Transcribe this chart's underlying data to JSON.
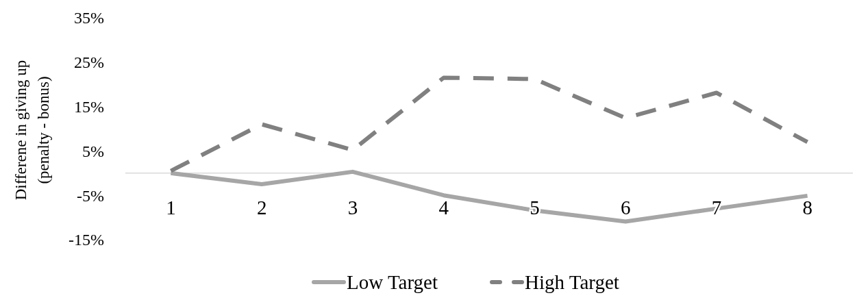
{
  "chart_data": {
    "type": "line",
    "ylabel": "Differene in giving up\n(penalty - bonus)",
    "categories": [
      "1",
      "2",
      "3",
      "4",
      "5",
      "6",
      "7",
      "8"
    ],
    "series": [
      {
        "name": "Low Target",
        "color": "#a6a6a6",
        "line_style": "solid",
        "values": [
          0,
          -2.5,
          0.3,
          -5,
          -8.4,
          -10.9,
          -8,
          -5.1
        ]
      },
      {
        "name": "High Target",
        "color": "#808080",
        "line_style": "dashed",
        "values": [
          0.5,
          11,
          5.2,
          21.5,
          21.2,
          12.4,
          18.1,
          7
        ]
      }
    ],
    "ylim": [
      -15,
      35
    ],
    "yticks": [
      {
        "value": -15,
        "label": "-15%"
      },
      {
        "value": -5,
        "label": "-5%"
      },
      {
        "value": 5,
        "label": "5%"
      },
      {
        "value": 15,
        "label": "15%"
      },
      {
        "value": 25,
        "label": "25%"
      },
      {
        "value": 35,
        "label": "35%"
      }
    ],
    "grid": false,
    "legend": "bottom"
  }
}
